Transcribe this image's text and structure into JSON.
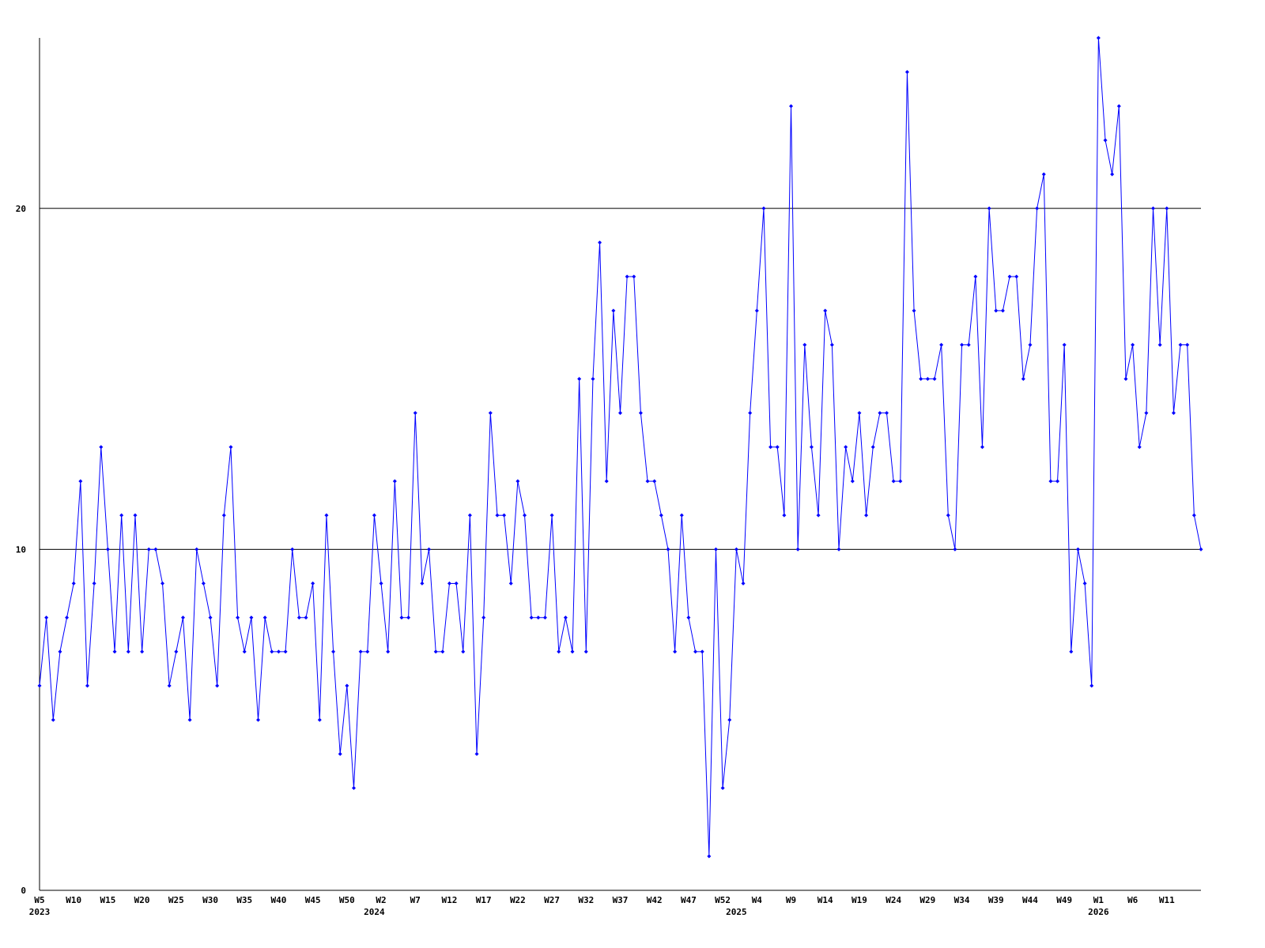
{
  "chart_data": {
    "type": "line",
    "color": "#0000ff",
    "grid_color": "#000000",
    "ylim": [
      0,
      25
    ],
    "yticks": [
      0,
      10,
      20
    ],
    "grid": true,
    "categories": [
      "W5",
      null,
      null,
      null,
      null,
      "W10",
      null,
      null,
      null,
      null,
      "W15",
      null,
      null,
      null,
      null,
      "W20",
      null,
      null,
      null,
      null,
      "W25",
      null,
      null,
      null,
      null,
      "W30",
      null,
      null,
      null,
      null,
      "W35",
      null,
      null,
      null,
      null,
      "W40",
      null,
      null,
      null,
      null,
      "W45",
      null,
      null,
      null,
      null,
      "W50",
      null,
      null,
      null,
      null,
      "W2",
      null,
      null,
      null,
      null,
      "W7",
      null,
      null,
      null,
      null,
      "W12",
      null,
      null,
      null,
      null,
      "W17",
      null,
      null,
      null,
      null,
      "W22",
      null,
      null,
      null,
      null,
      "W27",
      null,
      null,
      null,
      null,
      "W32",
      null,
      null,
      null,
      null,
      "W37",
      null,
      null,
      null,
      null,
      "W42",
      null,
      null,
      null,
      null,
      "W47",
      null,
      null,
      null,
      null,
      "W52",
      null,
      null,
      null,
      null,
      "W4",
      null,
      null,
      null,
      null,
      "W9",
      null,
      null,
      null,
      null,
      "W14",
      null,
      null,
      null,
      null,
      "W19",
      null,
      null,
      null,
      null,
      "W24",
      null,
      null,
      null,
      null,
      "W29",
      null,
      null,
      null,
      null,
      "W34",
      null,
      null,
      null,
      null,
      "W39",
      null,
      null,
      null,
      null,
      "W44",
      null,
      null,
      null,
      null,
      "W49",
      null,
      null,
      null,
      null,
      "W1",
      null,
      null,
      null,
      null,
      "W6",
      null,
      null,
      null,
      null,
      "W11",
      null,
      null,
      null,
      null,
      null
    ],
    "category_years": [
      "2023",
      null,
      null,
      null,
      null,
      null,
      null,
      null,
      null,
      null,
      null,
      null,
      null,
      null,
      null,
      null,
      null,
      null,
      null,
      null,
      null,
      null,
      null,
      null,
      null,
      null,
      null,
      null,
      null,
      null,
      null,
      null,
      null,
      null,
      null,
      null,
      null,
      null,
      null,
      null,
      null,
      null,
      null,
      null,
      null,
      null,
      null,
      null,
      null,
      "2024",
      null,
      null,
      null,
      null,
      null,
      null,
      null,
      null,
      null,
      null,
      null,
      null,
      null,
      null,
      null,
      null,
      null,
      null,
      null,
      null,
      null,
      null,
      null,
      null,
      null,
      null,
      null,
      null,
      null,
      null,
      null,
      null,
      null,
      null,
      null,
      null,
      null,
      null,
      null,
      null,
      null,
      null,
      null,
      null,
      null,
      null,
      null,
      null,
      null,
      null,
      null,
      null,
      "2025",
      null,
      null,
      null,
      null,
      null,
      null,
      null,
      null,
      null,
      null,
      null,
      null,
      null,
      null,
      null,
      null,
      null,
      null,
      null,
      null,
      null,
      null,
      null,
      null,
      null,
      null,
      null,
      null,
      null,
      null,
      null,
      null,
      null,
      null,
      null,
      null,
      null,
      null,
      null,
      null,
      null,
      null,
      null,
      null,
      null,
      null,
      null,
      null,
      null,
      null,
      null,
      null,
      "2026",
      null,
      null,
      null,
      null,
      null,
      null,
      null,
      null,
      null,
      null,
      null,
      null,
      null,
      null,
      null
    ],
    "values": [
      6,
      8,
      5,
      7,
      8,
      9,
      12,
      6,
      9,
      13,
      10,
      7,
      11,
      7,
      11,
      7,
      10,
      10,
      9,
      6,
      7,
      8,
      5,
      10,
      9,
      8,
      6,
      11,
      13,
      8,
      7,
      8,
      5,
      8,
      7,
      7,
      7,
      10,
      8,
      8,
      9,
      5,
      11,
      7,
      4,
      6,
      3,
      7,
      7,
      11,
      9,
      7,
      12,
      8,
      8,
      14,
      9,
      10,
      7,
      7,
      9,
      9,
      7,
      11,
      4,
      8,
      14,
      11,
      11,
      9,
      12,
      11,
      8,
      8,
      8,
      11,
      7,
      8,
      7,
      15,
      7,
      15,
      19,
      12,
      17,
      14,
      18,
      18,
      14,
      12,
      12,
      11,
      10,
      7,
      11,
      8,
      7,
      7,
      1,
      10,
      3,
      5,
      10,
      9,
      14,
      17,
      20,
      13,
      13,
      11,
      23,
      10,
      16,
      13,
      11,
      17,
      16,
      10,
      13,
      12,
      14,
      11,
      13,
      14,
      14,
      12,
      12,
      24,
      17,
      15,
      15,
      15,
      16,
      11,
      10,
      16,
      16,
      18,
      13,
      20,
      17,
      17,
      18,
      18,
      15,
      16,
      20,
      21,
      12,
      12,
      16,
      7,
      10,
      9,
      6,
      25,
      22,
      21,
      23,
      15,
      16,
      13,
      14,
      20,
      16,
      20,
      14,
      16,
      16,
      11,
      10
    ]
  }
}
